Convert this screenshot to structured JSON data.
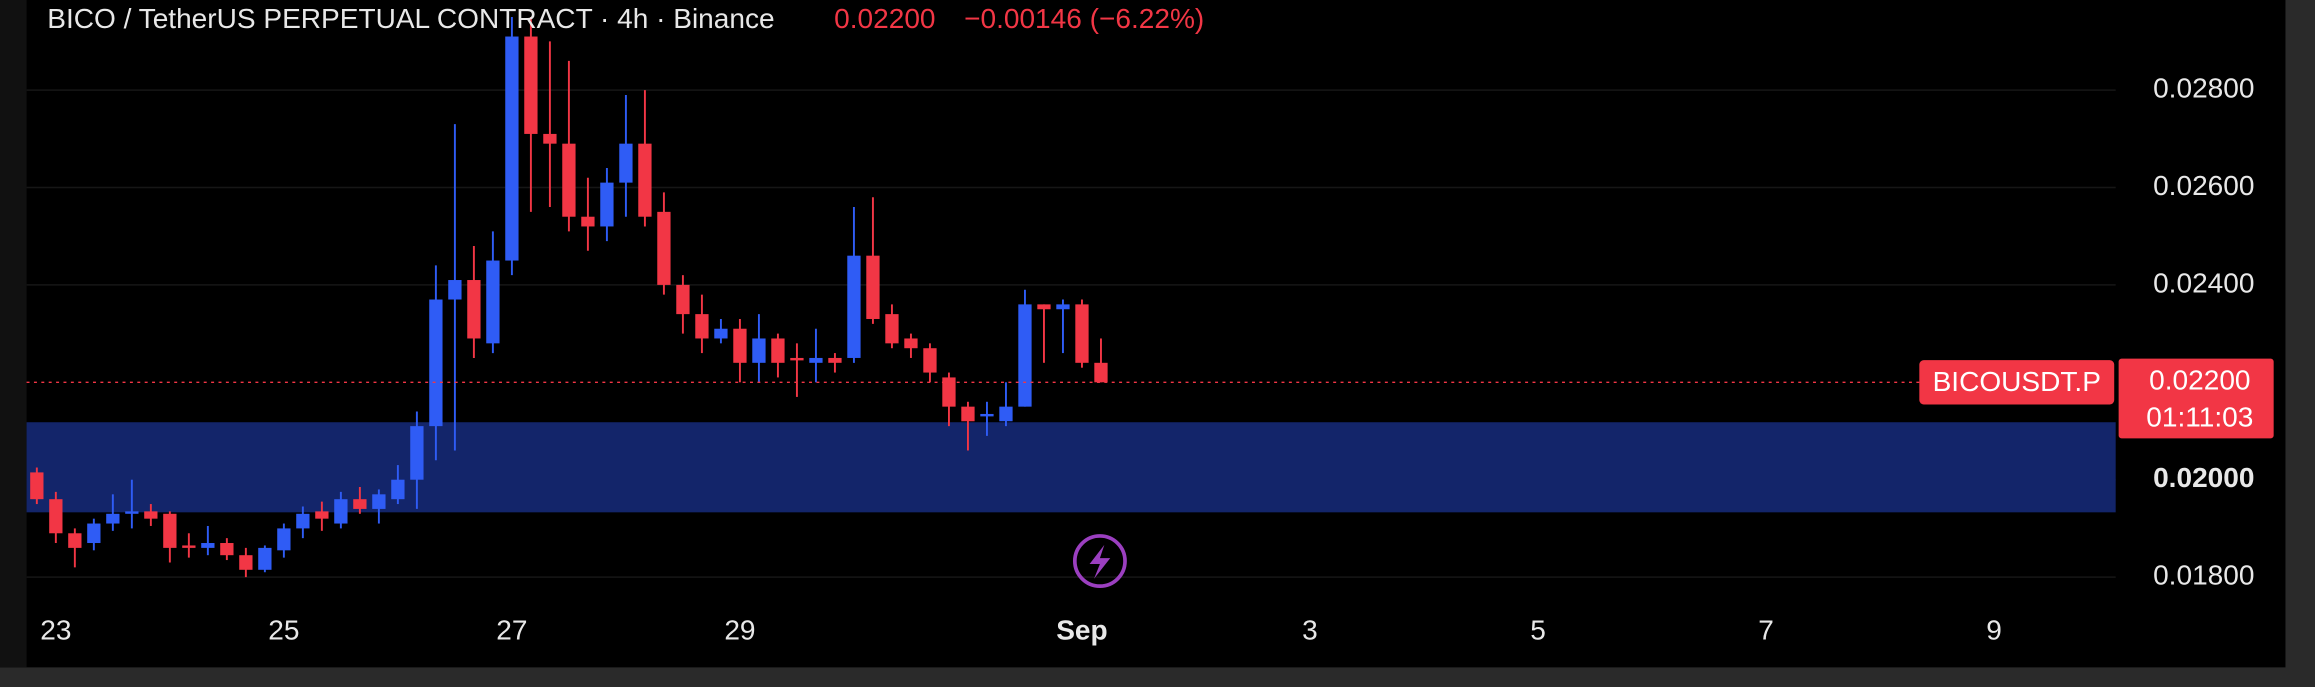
{
  "chart_data": {
    "type": "candlestick",
    "title": "BICO / TetherUS PERPETUAL CONTRACT · 4h · Binance",
    "change_label": "−0.00146 (−6.22%)",
    "symbol_tag": "BICOUSDT.P",
    "countdown": "01:11:03",
    "last_price": 0.022,
    "last_price_label": "0.02200",
    "up_color": "#2f5cf5",
    "down_color": "#f23645",
    "zone": [
      0.01933,
      0.02118
    ],
    "zone_color": "#13256a",
    "grid": true,
    "xlim": [
      -0.54,
      109.4
    ],
    "ylim": [
      0.01742,
      0.02985
    ],
    "xticks": [
      {
        "value": 1,
        "label": "23"
      },
      {
        "value": 13,
        "label": "25"
      },
      {
        "value": 25,
        "label": "27"
      },
      {
        "value": 37,
        "label": "29"
      },
      {
        "value": 55,
        "label": "Sep"
      },
      {
        "value": 67,
        "label": "3"
      },
      {
        "value": 79,
        "label": "5"
      },
      {
        "value": 91,
        "label": "7"
      },
      {
        "value": 103,
        "label": "9"
      }
    ],
    "yticks": [
      {
        "value": 0.018,
        "label": "0.01800"
      },
      {
        "value": 0.02,
        "label": "0.02000"
      },
      {
        "value": 0.024,
        "label": "0.02400"
      },
      {
        "value": 0.026,
        "label": "0.02600"
      },
      {
        "value": 0.028,
        "label": "0.02800"
      }
    ],
    "open": [
      0.02015,
      0.0196,
      0.0189,
      0.0187,
      0.0191,
      0.0193,
      0.01935,
      0.0193,
      0.01865,
      0.0186,
      0.0187,
      0.01845,
      0.01815,
      0.01855,
      0.019,
      0.01935,
      0.0191,
      0.0196,
      0.0194,
      0.0196,
      0.02,
      0.0211,
      0.0237,
      0.0241,
      0.0228,
      0.0245,
      0.0291,
      0.0271,
      0.0269,
      0.0254,
      0.0252,
      0.0261,
      0.0269,
      0.0255,
      0.024,
      0.0234,
      0.0229,
      0.0231,
      0.0224,
      0.0229,
      0.0225,
      0.0224,
      0.0225,
      0.0225,
      0.0246,
      0.0234,
      0.0229,
      0.0227,
      0.0221,
      0.0215,
      0.0213,
      0.0212,
      0.0215,
      0.0236,
      0.0235,
      0.0236,
      0.0224
    ],
    "high": [
      0.02025,
      0.01975,
      0.019,
      0.0192,
      0.0197,
      0.02,
      0.0195,
      0.01935,
      0.0189,
      0.01905,
      0.0188,
      0.0186,
      0.01865,
      0.0191,
      0.01945,
      0.01955,
      0.01975,
      0.01985,
      0.0198,
      0.0203,
      0.0214,
      0.0244,
      0.0273,
      0.0248,
      0.0251,
      0.0295,
      0.0295,
      0.029,
      0.0286,
      0.0262,
      0.0264,
      0.0279,
      0.028,
      0.0259,
      0.0242,
      0.0238,
      0.0233,
      0.0233,
      0.0234,
      0.023,
      0.0228,
      0.0231,
      0.0226,
      0.0256,
      0.0258,
      0.0236,
      0.023,
      0.0228,
      0.0222,
      0.0216,
      0.0216,
      0.022,
      0.0239,
      0.0236,
      0.0237,
      0.0237,
      0.0229
    ],
    "low": [
      0.0195,
      0.0187,
      0.0182,
      0.01855,
      0.01895,
      0.019,
      0.01905,
      0.0183,
      0.0184,
      0.01845,
      0.01835,
      0.018,
      0.0181,
      0.0184,
      0.0188,
      0.01895,
      0.019,
      0.0193,
      0.0191,
      0.0195,
      0.0194,
      0.0204,
      0.0206,
      0.0225,
      0.0226,
      0.0242,
      0.0255,
      0.0256,
      0.0251,
      0.0247,
      0.0249,
      0.0254,
      0.0252,
      0.0238,
      0.023,
      0.0226,
      0.0228,
      0.022,
      0.022,
      0.0221,
      0.0217,
      0.022,
      0.0222,
      0.0224,
      0.0232,
      0.0227,
      0.0225,
      0.022,
      0.0211,
      0.0206,
      0.0209,
      0.0211,
      0.0215,
      0.0224,
      0.0226,
      0.0223,
      0.022
    ],
    "close": [
      0.0196,
      0.0189,
      0.0186,
      0.0191,
      0.0193,
      0.01935,
      0.0192,
      0.0186,
      0.0186,
      0.0187,
      0.01845,
      0.01815,
      0.0186,
      0.019,
      0.0193,
      0.0192,
      0.0196,
      0.0194,
      0.0197,
      0.02,
      0.0211,
      0.0237,
      0.0241,
      0.0229,
      0.0245,
      0.0291,
      0.0271,
      0.0269,
      0.0254,
      0.0252,
      0.0261,
      0.0269,
      0.0254,
      0.024,
      0.0234,
      0.0229,
      0.0231,
      0.0224,
      0.0229,
      0.0224,
      0.02245,
      0.0225,
      0.0224,
      0.0246,
      0.0233,
      0.0228,
      0.0227,
      0.0222,
      0.0215,
      0.0212,
      0.02135,
      0.0215,
      0.0236,
      0.0235,
      0.0236,
      0.0224,
      0.022
    ]
  }
}
